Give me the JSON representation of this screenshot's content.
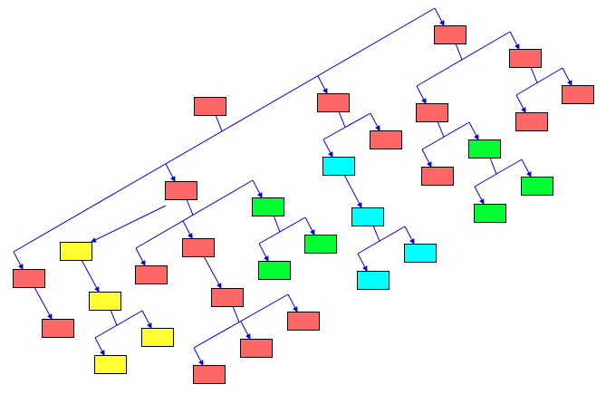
{
  "colors": {
    "red": "#ff6666",
    "green": "#00ff33",
    "cyan": "#00ffff",
    "yellow": "#ffff33",
    "edge": "#0000dd",
    "border": "#000000"
  },
  "nodes": [
    {
      "id": 1,
      "color": "red",
      "children": [
        5,
        2
      ]
    },
    {
      "id": 2,
      "color": "red",
      "children": [
        4,
        3
      ]
    },
    {
      "id": 3,
      "color": "red",
      "children": []
    },
    {
      "id": 4,
      "color": "red",
      "children": []
    },
    {
      "id": 5,
      "color": "red",
      "children": [
        7,
        6
      ]
    },
    {
      "id": 6,
      "color": "green",
      "children": [
        9,
        8
      ]
    },
    {
      "id": 7,
      "color": "red",
      "children": []
    },
    {
      "id": 8,
      "color": "green",
      "children": []
    },
    {
      "id": 9,
      "color": "green",
      "children": []
    },
    {
      "id": 10,
      "color": "red",
      "children": [
        12,
        11
      ]
    },
    {
      "id": 11,
      "color": "red",
      "children": []
    },
    {
      "id": 12,
      "color": "cyan",
      "children": [
        13
      ]
    },
    {
      "id": 13,
      "color": "cyan",
      "children": [
        15,
        14
      ]
    },
    {
      "id": 14,
      "color": "cyan",
      "children": []
    },
    {
      "id": 15,
      "color": "cyan",
      "children": []
    },
    {
      "id": 16,
      "color": "red",
      "children": [
        31,
        17,
        10,
        1
      ]
    },
    {
      "id": 17,
      "color": "red",
      "children": [
        22,
        21,
        18
      ]
    },
    {
      "id": 18,
      "color": "green",
      "children": [
        20,
        19
      ]
    },
    {
      "id": 19,
      "color": "green",
      "children": []
    },
    {
      "id": 20,
      "color": "green",
      "children": []
    },
    {
      "id": 21,
      "color": "red",
      "children": [
        23
      ]
    },
    {
      "id": 22,
      "color": "red",
      "children": []
    },
    {
      "id": 23,
      "color": "red",
      "children": [
        26,
        25,
        24
      ]
    },
    {
      "id": 24,
      "color": "red",
      "children": []
    },
    {
      "id": 25,
      "color": "red",
      "children": []
    },
    {
      "id": 26,
      "color": "red",
      "children": []
    },
    {
      "id": 27,
      "color": "yellow",
      "children": [
        28
      ]
    },
    {
      "id": 28,
      "color": "yellow",
      "children": [
        30,
        29
      ]
    },
    {
      "id": 29,
      "color": "yellow",
      "children": []
    },
    {
      "id": 30,
      "color": "yellow",
      "children": []
    },
    {
      "id": 31,
      "color": "red",
      "children": [
        32
      ]
    },
    {
      "id": 32,
      "color": "red",
      "children": []
    }
  ],
  "extra_links": [
    [
      17,
      27
    ]
  ]
}
